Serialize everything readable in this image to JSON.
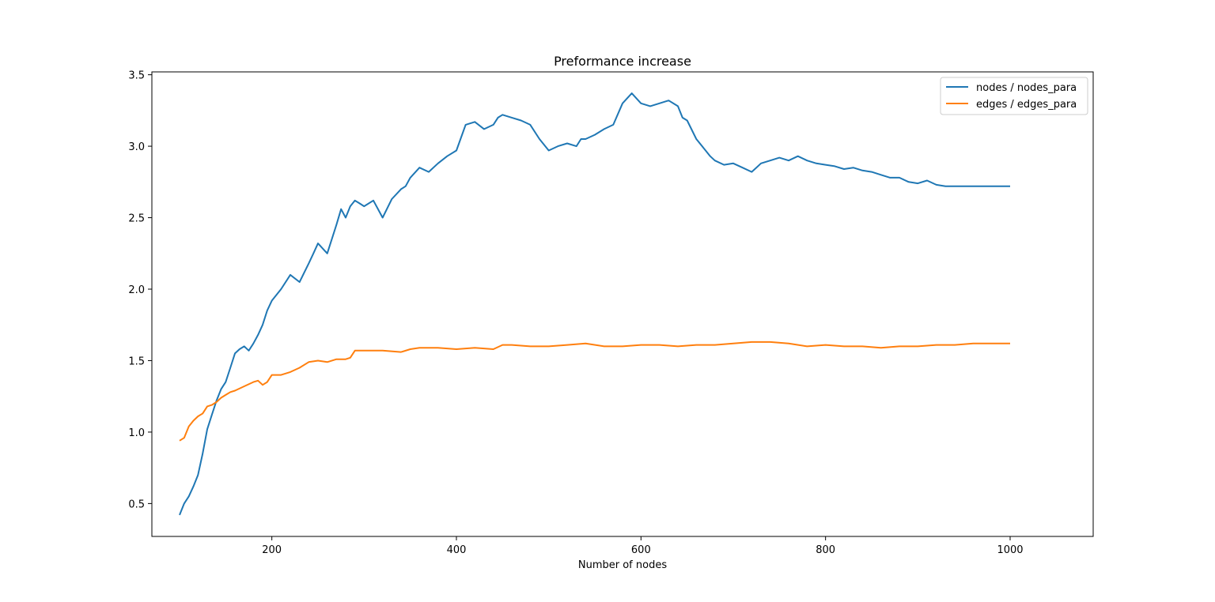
{
  "chart_data": {
    "type": "line",
    "title": "Preformance increase",
    "xlabel": "Number of nodes",
    "ylabel": "",
    "xlim": [
      70,
      1090
    ],
    "ylim": [
      0.27,
      3.52
    ],
    "xticks": [
      200,
      400,
      600,
      800,
      1000
    ],
    "xtick_labels": [
      "200",
      "400",
      "600",
      "800",
      "1000"
    ],
    "yticks": [
      0.5,
      1.0,
      1.5,
      2.0,
      2.5,
      3.0,
      3.5
    ],
    "ytick_labels": [
      "0.5",
      "1.0",
      "1.5",
      "2.0",
      "2.5",
      "3.0",
      "3.5"
    ],
    "grid": false,
    "legend_position": "upper-right",
    "series": [
      {
        "name": "nodes / nodes_para",
        "color": "#1f77b4",
        "x": [
          100,
          105,
          110,
          115,
          120,
          125,
          130,
          135,
          140,
          145,
          150,
          155,
          160,
          165,
          170,
          175,
          180,
          185,
          190,
          195,
          200,
          210,
          220,
          230,
          240,
          245,
          250,
          260,
          270,
          275,
          280,
          285,
          290,
          295,
          300,
          310,
          320,
          330,
          340,
          345,
          350,
          360,
          370,
          380,
          390,
          400,
          410,
          420,
          430,
          440,
          445,
          450,
          460,
          470,
          480,
          490,
          500,
          510,
          520,
          530,
          535,
          540,
          550,
          560,
          570,
          580,
          590,
          600,
          610,
          620,
          630,
          640,
          645,
          650,
          660,
          670,
          675,
          680,
          690,
          700,
          710,
          720,
          725,
          730,
          740,
          750,
          760,
          770,
          780,
          790,
          800,
          810,
          820,
          830,
          840,
          850,
          860,
          870,
          880,
          890,
          900,
          910,
          920,
          930,
          940,
          950,
          960,
          970,
          980,
          990,
          1000
        ],
        "y": [
          0.42,
          0.5,
          0.55,
          0.62,
          0.7,
          0.85,
          1.02,
          1.12,
          1.22,
          1.3,
          1.35,
          1.45,
          1.55,
          1.58,
          1.6,
          1.57,
          1.62,
          1.68,
          1.75,
          1.85,
          1.92,
          2.0,
          2.1,
          2.05,
          2.18,
          2.25,
          2.32,
          2.25,
          2.45,
          2.56,
          2.5,
          2.58,
          2.62,
          2.6,
          2.58,
          2.62,
          2.5,
          2.63,
          2.7,
          2.72,
          2.78,
          2.85,
          2.82,
          2.88,
          2.93,
          2.97,
          3.15,
          3.17,
          3.12,
          3.15,
          3.2,
          3.22,
          3.2,
          3.18,
          3.15,
          3.05,
          2.97,
          3.0,
          3.02,
          3.0,
          3.05,
          3.05,
          3.08,
          3.12,
          3.15,
          3.3,
          3.37,
          3.3,
          3.28,
          3.3,
          3.32,
          3.28,
          3.2,
          3.18,
          3.05,
          2.97,
          2.93,
          2.9,
          2.87,
          2.88,
          2.85,
          2.82,
          2.85,
          2.88,
          2.9,
          2.92,
          2.9,
          2.93,
          2.9,
          2.88,
          2.87,
          2.86,
          2.84,
          2.85,
          2.83,
          2.82,
          2.8,
          2.78,
          2.78,
          2.75,
          2.74,
          2.76,
          2.73,
          2.72,
          2.72,
          2.72,
          2.72,
          2.72,
          2.72,
          2.72,
          2.72
        ],
        "x_note": ""
      },
      {
        "name": "edges / edges_para",
        "color": "#ff7f0e",
        "x": [
          100,
          105,
          110,
          115,
          120,
          125,
          130,
          135,
          140,
          145,
          150,
          155,
          160,
          170,
          180,
          185,
          190,
          195,
          200,
          210,
          220,
          230,
          240,
          250,
          260,
          270,
          280,
          285,
          290,
          300,
          320,
          340,
          350,
          360,
          380,
          400,
          420,
          440,
          450,
          460,
          480,
          500,
          520,
          540,
          560,
          580,
          600,
          620,
          640,
          660,
          680,
          700,
          720,
          740,
          760,
          780,
          800,
          820,
          840,
          860,
          880,
          900,
          920,
          940,
          960,
          980,
          1000
        ],
        "y": [
          0.94,
          0.96,
          1.04,
          1.08,
          1.11,
          1.13,
          1.18,
          1.19,
          1.21,
          1.24,
          1.26,
          1.28,
          1.29,
          1.32,
          1.35,
          1.36,
          1.33,
          1.35,
          1.4,
          1.4,
          1.42,
          1.45,
          1.49,
          1.5,
          1.49,
          1.51,
          1.51,
          1.52,
          1.57,
          1.57,
          1.57,
          1.56,
          1.58,
          1.59,
          1.59,
          1.58,
          1.59,
          1.58,
          1.61,
          1.61,
          1.6,
          1.6,
          1.61,
          1.62,
          1.6,
          1.6,
          1.61,
          1.61,
          1.6,
          1.61,
          1.61,
          1.62,
          1.63,
          1.63,
          1.62,
          1.6,
          1.61,
          1.6,
          1.6,
          1.59,
          1.6,
          1.6,
          1.61,
          1.61,
          1.62,
          1.62,
          1.62
        ],
        "x_note": ""
      }
    ]
  }
}
